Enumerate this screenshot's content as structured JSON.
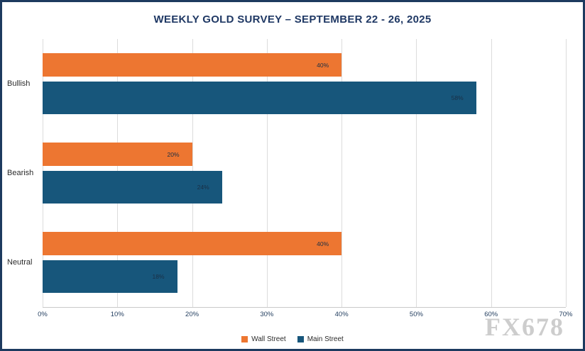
{
  "chart_data": {
    "type": "bar",
    "orientation": "horizontal",
    "title": "WEEKLY GOLD SURVEY – SEPTEMBER 22 - 26, 2025",
    "categories": [
      "Bullish",
      "Bearish",
      "Neutral"
    ],
    "series": [
      {
        "name": "Wall Street",
        "color": "#ed7631",
        "values": [
          40,
          20,
          40
        ]
      },
      {
        "name": "Main Street",
        "color": "#17567b",
        "values": [
          58,
          24,
          18
        ]
      }
    ],
    "xlim": [
      0,
      70
    ],
    "x_tick_values": [
      0,
      10,
      20,
      30,
      40,
      50,
      60,
      70
    ],
    "x_ticks": [
      "0%",
      "10%",
      "20%",
      "30%",
      "40%",
      "50%",
      "60%",
      "70%"
    ],
    "value_suffix": "%",
    "grid": true,
    "legend_position": "bottom"
  },
  "watermark": {
    "text": "FX678"
  },
  "colors": {
    "frame_border": "#1d3a5f",
    "title": "#1f3864",
    "gridline": "#dcdcdc"
  }
}
